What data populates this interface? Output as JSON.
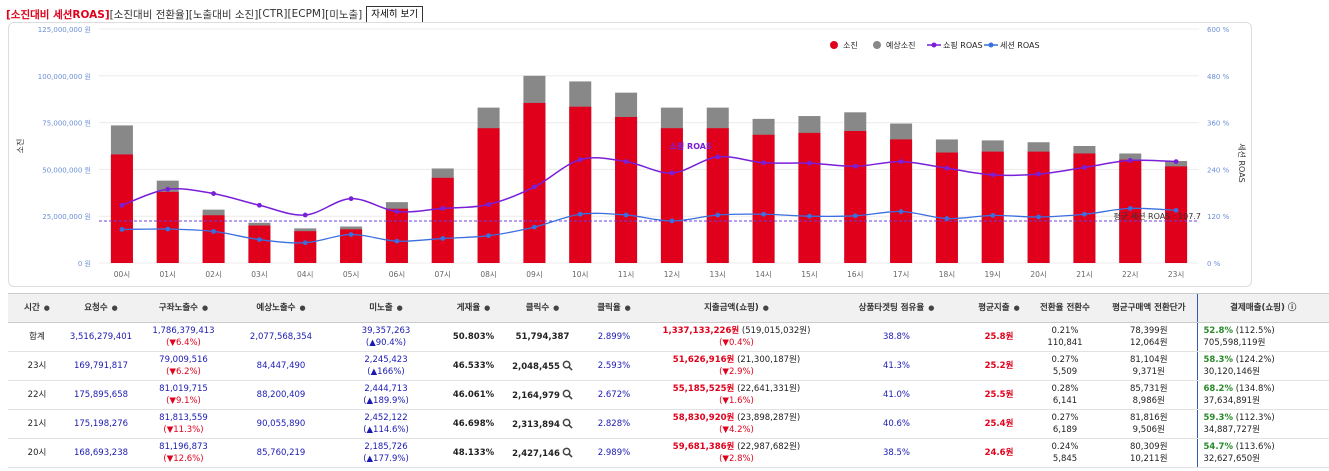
{
  "tabs": [
    {
      "label": "[소진대비 세션ROAS]",
      "active": true
    },
    {
      "label": "[소진대비 전환율]",
      "active": false
    },
    {
      "label": "[노출대비 소진]",
      "active": false
    },
    {
      "label": "[CTR]",
      "active": false
    },
    {
      "label": "[ECPM]",
      "active": false
    },
    {
      "label": "[미노출]",
      "active": false
    }
  ],
  "detail_button": "자세히 보기",
  "chart_data": {
    "type": "bar",
    "categories": [
      "00시",
      "01시",
      "02시",
      "03시",
      "04시",
      "05시",
      "06시",
      "07시",
      "08시",
      "09시",
      "10시",
      "11시",
      "12시",
      "13시",
      "14시",
      "15시",
      "16시",
      "17시",
      "18시",
      "19시",
      "20시",
      "21시",
      "22시",
      "23시"
    ],
    "series": [
      {
        "name": "소진",
        "kind": "bar",
        "color": "#e0001b",
        "values": [
          58000000,
          38000000,
          25500000,
          20000000,
          17000000,
          18000000,
          29000000,
          45500000,
          72000000,
          85500000,
          83500000,
          78000000,
          72000000,
          72000000,
          68500000,
          69500000,
          70500000,
          66000000,
          59000000,
          59500000,
          59500000,
          58500000,
          55200000,
          51600000
        ]
      },
      {
        "name": "예상소진",
        "kind": "bar",
        "color": "#888888",
        "values": [
          73500000,
          44000000,
          28500000,
          21500000,
          18500000,
          19500000,
          32500000,
          50500000,
          83000000,
          100000000,
          97000000,
          91000000,
          83000000,
          83000000,
          77000000,
          78500000,
          80500000,
          74500000,
          66000000,
          65500000,
          64500000,
          62500000,
          58500000,
          54500000
        ]
      },
      {
        "name": "쇼핑 ROAS",
        "kind": "line",
        "axis": "right",
        "color": "#7a1fd9",
        "values": [
          148,
          189,
          178,
          148,
          123,
          165,
          132,
          140,
          150,
          195,
          265,
          260,
          231,
          272,
          257,
          256,
          248,
          260,
          243,
          226,
          228,
          245,
          263,
          260
        ]
      },
      {
        "name": "세션 ROAS",
        "kind": "line",
        "axis": "right",
        "color": "#3a6fe0",
        "values": [
          86,
          87,
          81,
          60,
          52,
          73,
          56,
          63,
          70,
          92,
          125,
          123,
          108,
          123,
          125,
          120,
          121,
          132,
          114,
          122,
          118,
          125,
          140,
          135
        ]
      }
    ],
    "left_axis": {
      "label": "소진",
      "min": 0,
      "max": 125000000,
      "ticks": [
        "0 원",
        "25,000,000 원",
        "50,000,000 원",
        "75,000,000 원",
        "100,000,000 원",
        "125,000,000 원"
      ]
    },
    "right_axis": {
      "label": "세션 ROAS",
      "min": 0,
      "max": 600,
      "ticks": [
        "0 %",
        "120 %",
        "240 %",
        "360 %",
        "480 %",
        "600 %"
      ]
    },
    "reference_line": {
      "value": 107.7,
      "label": "평균 세션 ROAS : 107.7"
    },
    "annotation": "쇼핑 ROAS",
    "legend_position": "top-right"
  },
  "table": {
    "headers": [
      "시간",
      "요청수",
      "구좌노출수",
      "예상노출수",
      "미노출",
      "게재율",
      "클릭수",
      "클릭율",
      "지출금액(쇼핑)",
      "상품타겟팅 점유율",
      "평균지출",
      "전환율 전환수",
      "평균구매액 전환단가",
      "결제매출(쇼핑) ⓘ"
    ],
    "rows": [
      {
        "time": "합계",
        "requests": "3,516,279,401",
        "slot": "1,786,379,413",
        "slot_delta": "(▼6.4%)",
        "expected": "2,077,568,354",
        "miss": "39,357,263",
        "miss_delta": "(▲90.4%)",
        "fill": "50.803%",
        "clicks": "51,794,387",
        "ctr": "2.899%",
        "spend": "1,337,133,226원",
        "spend_sub": " (519,015,032원)",
        "spend_delta": "(▼0.4%)",
        "share": "38.8%",
        "avg": "25.8원",
        "conv": "0.21%",
        "conv_n": "110,841",
        "aov": "78,399원",
        "cpa": "12,064원",
        "pay": "52.8%",
        "pay_sub": " (112.5%)",
        "pay_amt": "705,598,119원",
        "search": false
      },
      {
        "time": "23시",
        "requests": "169,791,817",
        "slot": "79,009,516",
        "slot_delta": "(▼6.2%)",
        "expected": "84,447,490",
        "miss": "2,245,423",
        "miss_delta": "(▲166%)",
        "fill": "46.533%",
        "clicks": "2,048,455",
        "ctr": "2.593%",
        "spend": "51,626,916원",
        "spend_sub": " (21,300,187원)",
        "spend_delta": "(▼2.9%)",
        "share": "41.3%",
        "avg": "25.2원",
        "conv": "0.27%",
        "conv_n": "5,509",
        "aov": "81,104원",
        "cpa": "9,371원",
        "pay": "58.3%",
        "pay_sub": " (124.2%)",
        "pay_amt": "30,120,146원",
        "search": true
      },
      {
        "time": "22시",
        "requests": "175,895,658",
        "slot": "81,019,715",
        "slot_delta": "(▼9.1%)",
        "expected": "88,200,409",
        "miss": "2,444,713",
        "miss_delta": "(▲189.9%)",
        "fill": "46.061%",
        "clicks": "2,164,979",
        "ctr": "2.672%",
        "spend": "55,185,525원",
        "spend_sub": " (22,641,331원)",
        "spend_delta": "(▼1.6%)",
        "share": "41.0%",
        "avg": "25.5원",
        "conv": "0.28%",
        "conv_n": "6,141",
        "aov": "85,731원",
        "cpa": "8,986원",
        "pay": "68.2%",
        "pay_sub": " (134.8%)",
        "pay_amt": "37,634,891원",
        "search": true
      },
      {
        "time": "21시",
        "requests": "175,198,276",
        "slot": "81,813,559",
        "slot_delta": "(▼11.3%)",
        "expected": "90,055,890",
        "miss": "2,452,122",
        "miss_delta": "(▲114.6%)",
        "fill": "46.698%",
        "clicks": "2,313,894",
        "ctr": "2.828%",
        "spend": "58,830,920원",
        "spend_sub": " (23,898,287원)",
        "spend_delta": "(▼4.2%)",
        "share": "40.6%",
        "avg": "25.4원",
        "conv": "0.27%",
        "conv_n": "6,189",
        "aov": "81,816원",
        "cpa": "9,506원",
        "pay": "59.3%",
        "pay_sub": " (112.3%)",
        "pay_amt": "34,887,727원",
        "search": true
      },
      {
        "time": "20시",
        "requests": "168,693,238",
        "slot": "81,196,873",
        "slot_delta": "(▼12.6%)",
        "expected": "85,760,219",
        "miss": "2,185,726",
        "miss_delta": "(▲177.9%)",
        "fill": "48.133%",
        "clicks": "2,427,146",
        "ctr": "2.989%",
        "spend": "59,681,386원",
        "spend_sub": " (22,987,682원)",
        "spend_delta": "(▼2.8%)",
        "share": "38.5%",
        "avg": "24.6원",
        "conv": "0.24%",
        "conv_n": "5,845",
        "aov": "80,309원",
        "cpa": "10,211원",
        "pay": "54.7%",
        "pay_sub": " (113.6%)",
        "pay_amt": "32,627,650원",
        "search": true
      }
    ]
  }
}
